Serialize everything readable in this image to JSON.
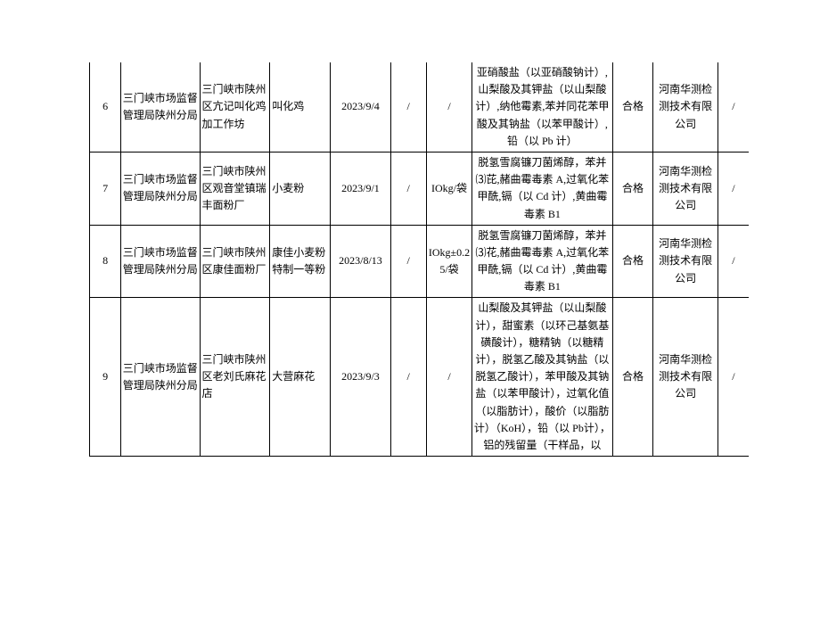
{
  "columns": [
    {
      "key": "idx",
      "cls": "c-idx"
    },
    {
      "key": "dept",
      "cls": "c-dept"
    },
    {
      "key": "sup",
      "cls": "c-sup",
      "align": "left"
    },
    {
      "key": "prod",
      "cls": "c-prod",
      "align": "left"
    },
    {
      "key": "date",
      "cls": "c-date"
    },
    {
      "key": "s1",
      "cls": "c-s1"
    },
    {
      "key": "spec",
      "cls": "c-spec"
    },
    {
      "key": "items",
      "cls": "c-items"
    },
    {
      "key": "res",
      "cls": "c-res"
    },
    {
      "key": "lab",
      "cls": "c-lab"
    },
    {
      "key": "last",
      "cls": "c-last"
    }
  ],
  "rows": [
    {
      "idx": "6",
      "dept": "三门峡市场监督管理局陕州分局",
      "sup": "三门峡市陕州区亢记叫化鸡加工作坊",
      "prod": "叫化鸡",
      "date": "2023/9/4",
      "s1": "/",
      "spec": "/",
      "items": "亚硝酸盐（以亚硝酸钠计）,山梨酸及其钾盐（以山梨酸计）,纳他霉素,苯并同花苯甲酸及其钠盐（以苯甲酸计）,铅（以 Pb 计）",
      "res": "合格",
      "lab": "河南华测检测技术有限公司",
      "last": "/"
    },
    {
      "idx": "7",
      "dept": "三门峡市场监督管理局陕州分局",
      "sup": "三门峡市陕州区观音堂镇瑞丰面粉厂",
      "prod": "小麦粉",
      "date": "2023/9/1",
      "s1": "/",
      "spec": "IOkg/袋",
      "items": "脱氢雪腐镰刀菌烯醇，苯并⑶芘,赭曲霉毒素 A,过氧化苯甲酰,镉（以 Cd 计）,黄曲霉毒素 B1",
      "res": "合格",
      "lab": "河南华测检测技术有限公司",
      "last": "/"
    },
    {
      "idx": "8",
      "dept": "三门峡市场监督管理局陕州分局",
      "sup": "三门峡市陕州区康佳面粉厂",
      "prod": "康佳小麦粉特制一等粉",
      "date": "2023/8/13",
      "s1": "/",
      "spec": "IOkg±0.25/袋",
      "items": "脱氢雪腐镰刀菌烯醇，苯并⑶花,赭曲霉毒素 A,过氧化苯甲酰,镉（以 Cd 计）,黄曲霉毒素 B1",
      "res": "合格",
      "lab": "河南华测检测技术有限公司",
      "last": "/"
    },
    {
      "idx": "9",
      "dept": "三门峡市场监督管理局陕州分局",
      "sup": "三门峡市陕州区老刘氏麻花店",
      "prod": "大营麻花",
      "date": "2023/9/3",
      "s1": "/",
      "spec": "/",
      "items": "山梨酸及其钾盐（以山梨酸计），甜蜜素（以环己基氨基磺酸计），糖精钠（以糖精计），脱氢乙酸及其钠盐（以脱氢乙酸计），苯甲酸及其钠盐（以苯甲酸计），过氧化值（以脂肪计），酸价（以脂肪计）（KoH），铅（以 Pb计）， 铝的残留量（干样品，以",
      "res": "合格",
      "lab": "河南华测检测技术有限公司",
      "last": "/"
    }
  ]
}
